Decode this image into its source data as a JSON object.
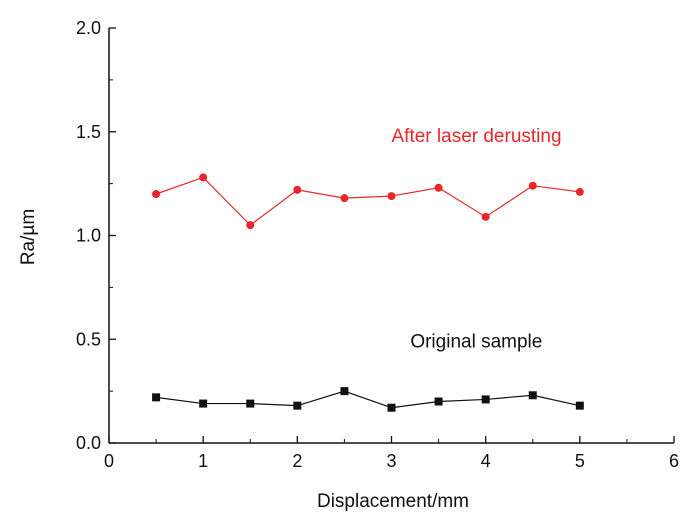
{
  "chart_data": {
    "type": "line",
    "title": "",
    "xlabel": "Displacement/mm",
    "ylabel": "Ra/µm",
    "xlim": [
      0,
      6
    ],
    "ylim": [
      0,
      2.0
    ],
    "xticks": [
      0,
      1,
      2,
      3,
      4,
      5,
      6
    ],
    "yticks": [
      0.0,
      0.5,
      1.0,
      1.5,
      2.0
    ],
    "ytick_labels": [
      "0.0",
      "0.5",
      "1.0",
      "1.5",
      "2.0"
    ],
    "grid": false,
    "series": [
      {
        "name": "After laser derusting",
        "color": "#e8262b",
        "marker": "circle",
        "x": [
          0.5,
          1.0,
          1.5,
          2.0,
          2.5,
          3.0,
          3.5,
          4.0,
          4.5,
          5.0
        ],
        "y": [
          1.2,
          1.28,
          1.05,
          1.22,
          1.18,
          1.19,
          1.23,
          1.09,
          1.24,
          1.21
        ],
        "label_at": [
          3.0,
          1.45
        ]
      },
      {
        "name": "Original sample",
        "color": "#111111",
        "marker": "square",
        "x": [
          0.5,
          1.0,
          1.5,
          2.0,
          2.5,
          3.0,
          3.5,
          4.0,
          4.5,
          5.0
        ],
        "y": [
          0.22,
          0.19,
          0.19,
          0.18,
          0.25,
          0.17,
          0.2,
          0.21,
          0.23,
          0.18
        ],
        "label_at": [
          3.2,
          0.46
        ]
      }
    ]
  }
}
